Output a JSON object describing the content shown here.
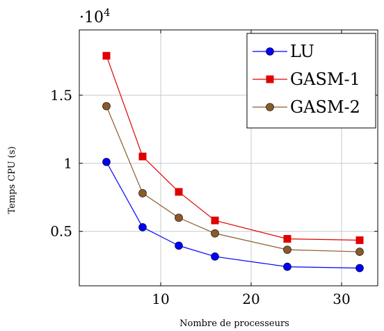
{
  "chart_data": {
    "type": "line",
    "title": "",
    "xlabel": "Nombre de processeurs",
    "ylabel": "Temps CPU (s)",
    "x": [
      4,
      8,
      12,
      16,
      24,
      32
    ],
    "xlim": [
      1,
      34
    ],
    "ylim": [
      1000,
      19800
    ],
    "y_multiplier_label": "·10",
    "y_multiplier_exponent": "4",
    "xticks": [
      10,
      20,
      30
    ],
    "xtick_labels": [
      "10",
      "20",
      "30"
    ],
    "yticks": [
      5000,
      10000,
      15000
    ],
    "ytick_labels": [
      "0.5",
      "1",
      "1.5"
    ],
    "grid": true,
    "legend_position": "top-right",
    "series": [
      {
        "name": "LU",
        "color": "#0000ff",
        "marker": "circle",
        "values": [
          10100,
          5300,
          3950,
          3150,
          2400,
          2300
        ]
      },
      {
        "name": "GASM-1",
        "color": "#e00000",
        "marker": "square",
        "values": [
          17900,
          10500,
          7900,
          5800,
          4450,
          4350
        ]
      },
      {
        "name": "GASM-2",
        "color": "#8b5a2b",
        "marker": "circle",
        "values": [
          14200,
          7800,
          6000,
          4850,
          3650,
          3500
        ]
      }
    ]
  }
}
